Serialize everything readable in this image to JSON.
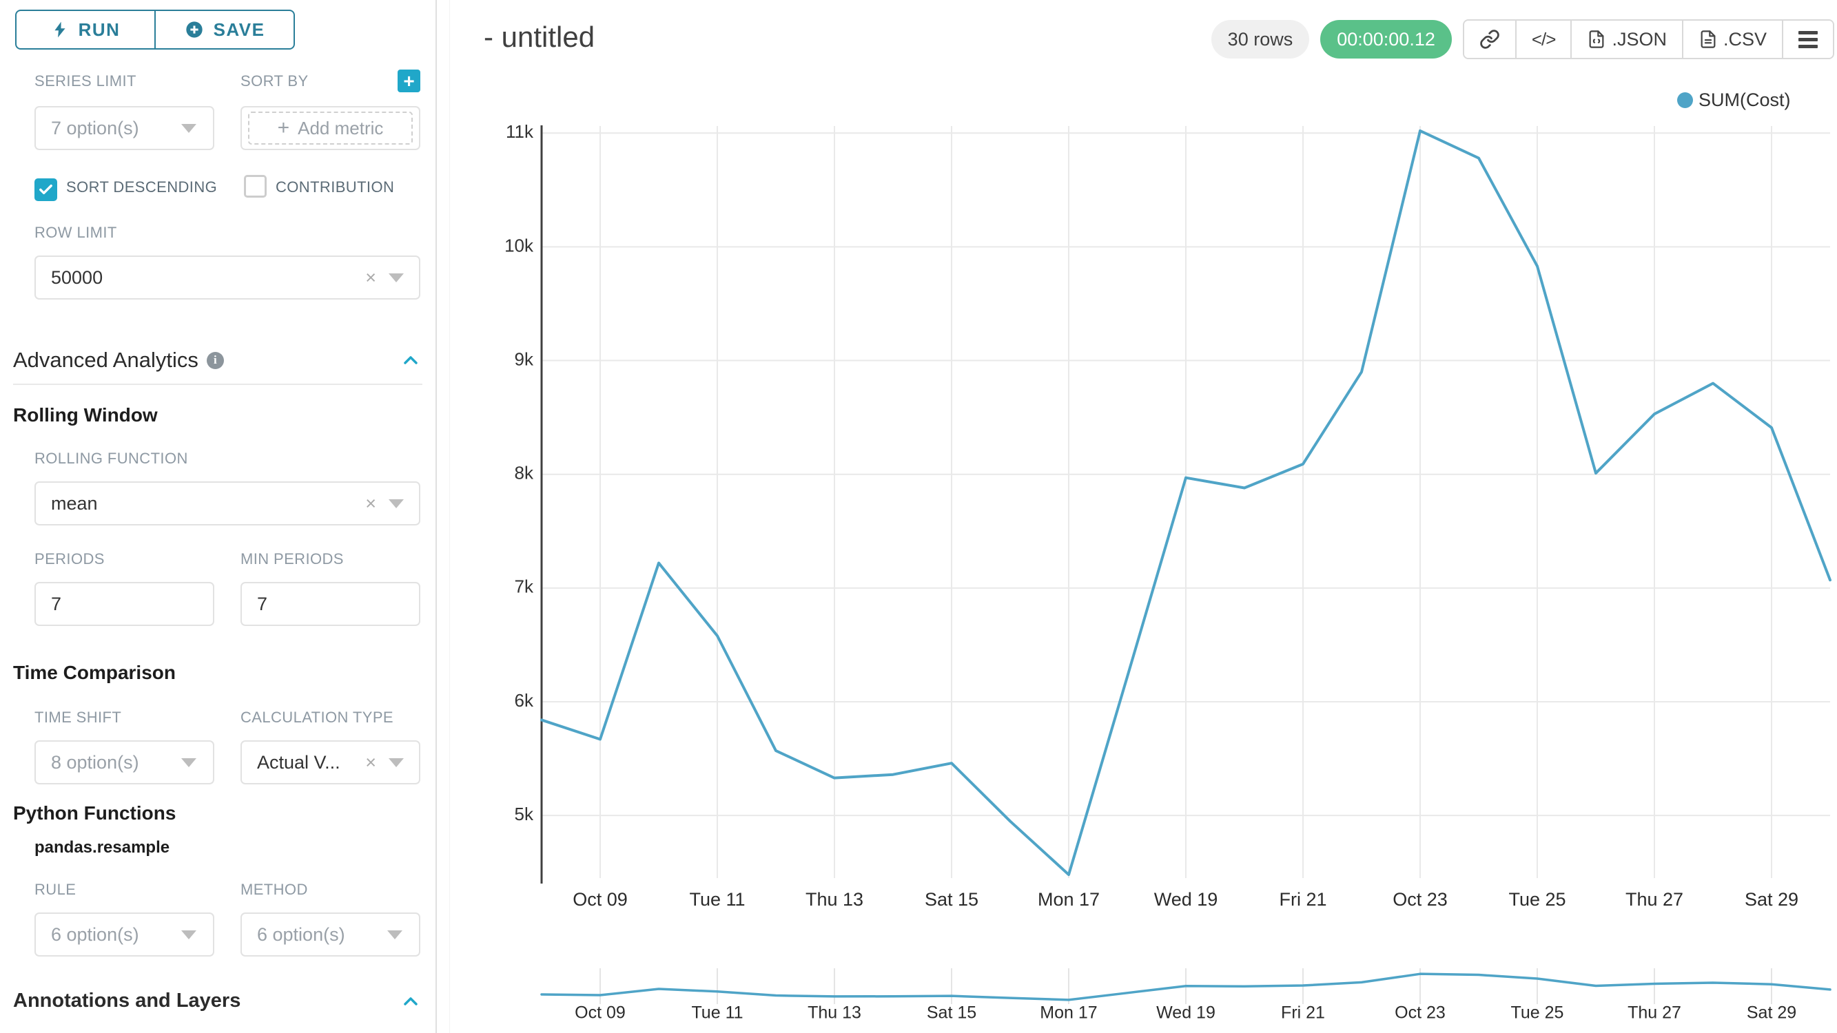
{
  "colors": {
    "accent": "#20A7C9",
    "button_teal": "#2A7E99",
    "series": "#4FA4C7",
    "timer_green": "#5AC189",
    "grid": "#E9E9E9",
    "axis": "#3F3F3F"
  },
  "sidebar": {
    "run_label": "RUN",
    "save_label": "SAVE",
    "series_limit": {
      "label": "SERIES LIMIT",
      "value": "7 option(s)"
    },
    "sort_by": {
      "label": "SORT BY",
      "placeholder": "Add metric",
      "plus_glyph": "+"
    },
    "sort_descending_label": "SORT DESCENDING",
    "contribution_label": "CONTRIBUTION",
    "row_limit": {
      "label": "ROW LIMIT",
      "value": "50000"
    },
    "advanced_analytics_title": "Advanced Analytics",
    "info_glyph": "i",
    "rolling_window_title": "Rolling Window",
    "rolling_function": {
      "label": "ROLLING FUNCTION",
      "value": "mean"
    },
    "periods": {
      "label": "PERIODS",
      "value": "7"
    },
    "min_periods": {
      "label": "MIN PERIODS",
      "value": "7"
    },
    "time_comparison_title": "Time Comparison",
    "time_shift": {
      "label": "TIME SHIFT",
      "value": "8 option(s)"
    },
    "calculation_type": {
      "label": "CALCULATION TYPE",
      "value": "Actual V..."
    },
    "python_functions_title": "Python Functions",
    "pandas_resample_label": "pandas.resample",
    "rule": {
      "label": "RULE",
      "value": "6 option(s)"
    },
    "method": {
      "label": "METHOD",
      "value": "6 option(s)"
    },
    "annotations_title": "Annotations and Layers",
    "clear_glyph": "×"
  },
  "header": {
    "title": "- untitled",
    "rows_badge": "30 rows",
    "timer_badge": "00:00:00.12",
    "json_label": ".JSON",
    "csv_label": ".CSV",
    "code_glyph": "</>"
  },
  "legend": {
    "label": "SUM(Cost)"
  },
  "chart_data": {
    "type": "line",
    "title": "- untitled",
    "xlabel": "",
    "ylabel": "",
    "grid": true,
    "legend_position": "top-right",
    "ylim": [
      4450,
      11050
    ],
    "y_ticks": [
      {
        "value": 5000,
        "label": "5k"
      },
      {
        "value": 6000,
        "label": "6k"
      },
      {
        "value": 7000,
        "label": "7k"
      },
      {
        "value": 8000,
        "label": "8k"
      },
      {
        "value": 9000,
        "label": "9k"
      },
      {
        "value": 10000,
        "label": "10k"
      },
      {
        "value": 11000,
        "label": "11k"
      }
    ],
    "x_ticks": [
      {
        "i": 1,
        "label": "Oct 09"
      },
      {
        "i": 3,
        "label": "Tue 11"
      },
      {
        "i": 5,
        "label": "Thu 13"
      },
      {
        "i": 7,
        "label": "Sat 15"
      },
      {
        "i": 9,
        "label": "Mon 17"
      },
      {
        "i": 11,
        "label": "Wed 19"
      },
      {
        "i": 13,
        "label": "Fri 21"
      },
      {
        "i": 15,
        "label": "Oct 23"
      },
      {
        "i": 17,
        "label": "Tue 25"
      },
      {
        "i": 19,
        "label": "Thu 27"
      },
      {
        "i": 21,
        "label": "Sat 29"
      }
    ],
    "has_mini_map": true,
    "series": [
      {
        "name": "SUM(Cost)",
        "color": "#4FA4C7",
        "x": [
          "Oct 08",
          "Oct 09",
          "Oct 10",
          "Oct 11",
          "Oct 12",
          "Oct 13",
          "Oct 14",
          "Oct 15",
          "Oct 16",
          "Oct 17",
          "Oct 18",
          "Oct 19",
          "Oct 20",
          "Oct 21",
          "Oct 22",
          "Oct 23",
          "Oct 24",
          "Oct 25",
          "Oct 26",
          "Oct 27",
          "Oct 28",
          "Oct 29",
          "Oct 30"
        ],
        "values": [
          5840,
          5670,
          7220,
          6580,
          5570,
          5330,
          5360,
          5460,
          4950,
          4480,
          6220,
          7970,
          7880,
          8090,
          8900,
          11020,
          10780,
          9830,
          8010,
          8530,
          8800,
          8410,
          7070
        ]
      }
    ]
  }
}
